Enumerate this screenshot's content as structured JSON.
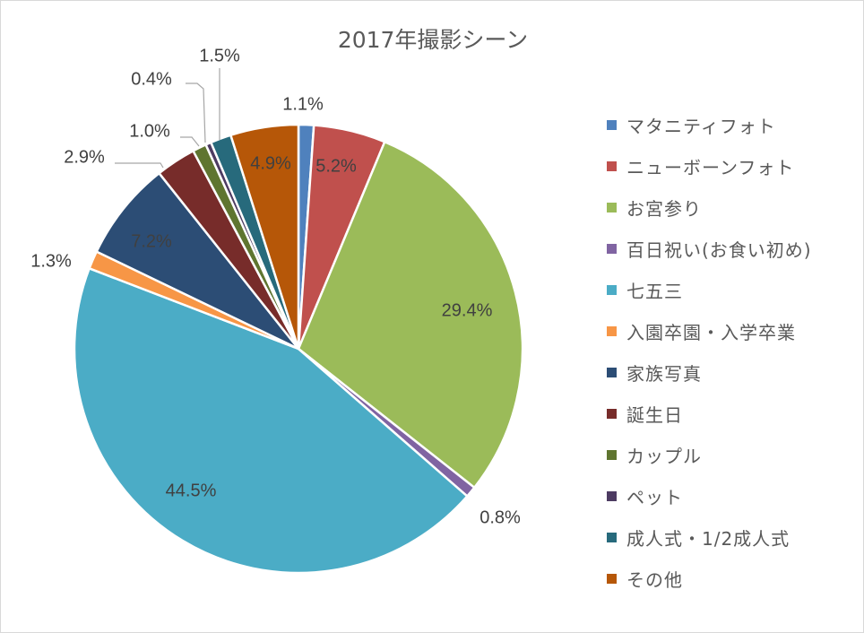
{
  "chart_data": {
    "type": "pie",
    "title": "2017年撮影シーン",
    "legend_position": "right",
    "series": [
      {
        "name": "マタニティフォト",
        "value": 1.1,
        "label": "1.1%",
        "color": "#4f81bd"
      },
      {
        "name": "ニューボーンフォト",
        "value": 5.2,
        "label": "5.2%",
        "color": "#c0504d"
      },
      {
        "name": "お宮参り",
        "value": 29.4,
        "label": "29.4%",
        "color": "#9bbb59"
      },
      {
        "name": "百日祝い(お食い初め)",
        "value": 0.8,
        "label": "0.8%",
        "color": "#8064a2"
      },
      {
        "name": "七五三",
        "value": 44.5,
        "label": "44.5%",
        "color": "#4bacc6"
      },
      {
        "name": "入園卒園・入学卒業",
        "value": 1.3,
        "label": "1.3%",
        "color": "#f79646"
      },
      {
        "name": "家族写真",
        "value": 7.2,
        "label": "7.2%",
        "color": "#2c4d75"
      },
      {
        "name": "誕生日",
        "value": 2.9,
        "label": "2.9%",
        "color": "#772c2a"
      },
      {
        "name": "カップル",
        "value": 1.0,
        "label": "1.0%",
        "color": "#5f7530"
      },
      {
        "name": "ペット",
        "value": 0.4,
        "label": "0.4%",
        "color": "#4d3b62"
      },
      {
        "name": "成人式・1/2成人式",
        "value": 1.5,
        "label": "1.5%",
        "color": "#276a7c"
      },
      {
        "name": "その他",
        "value": 4.9,
        "label": "4.9%",
        "color": "#b65708"
      }
    ]
  }
}
